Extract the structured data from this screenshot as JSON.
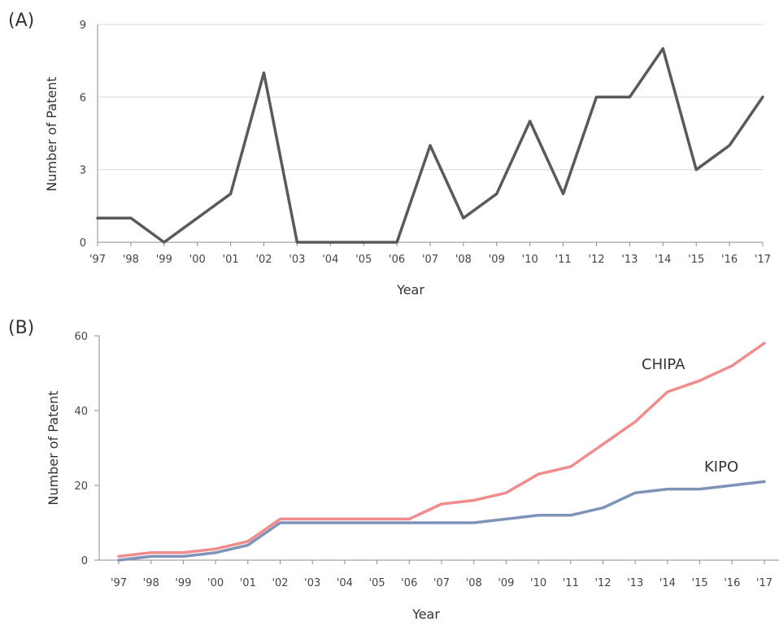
{
  "chart_data": [
    {
      "type": "line",
      "panel_label": "(A)",
      "xlabel": "Year",
      "ylabel": "Number of Patent",
      "categories": [
        "'97",
        "'98",
        "'99",
        "'00",
        "'01",
        "'02",
        "'03",
        "'04",
        "'05",
        "'06",
        "'07",
        "'08",
        "'09",
        "'10",
        "'11",
        "'12",
        "'13",
        "'14",
        "'15",
        "'16",
        "'17"
      ],
      "ylim": [
        0,
        9
      ],
      "yticks": [
        "0",
        "3",
        "6",
        "9"
      ],
      "grid": true,
      "series": [
        {
          "values": [
            1,
            1,
            0,
            1,
            2,
            7,
            0,
            0,
            0,
            0,
            4,
            1,
            2,
            5,
            2,
            6,
            6,
            8,
            3,
            4,
            6
          ],
          "color": "#5a5a5a"
        }
      ]
    },
    {
      "type": "line",
      "panel_label": "(B)",
      "xlabel": "Year",
      "ylabel": "Number of Patent",
      "categories": [
        "'97",
        "'98",
        "'99",
        "'00",
        "'01",
        "'02",
        "'03",
        "'04",
        "'05",
        "'06",
        "'07",
        "'08",
        "'09",
        "'10",
        "'11",
        "'12",
        "'13",
        "'14",
        "'15",
        "'16",
        "'17"
      ],
      "ylim": [
        0,
        60
      ],
      "yticks": [
        "0",
        "20",
        "40",
        "60"
      ],
      "grid": false,
      "series": [
        {
          "name": "CHIPA",
          "values": [
            1,
            2,
            2,
            3,
            5,
            11,
            11,
            11,
            11,
            11,
            15,
            16,
            18,
            23,
            25,
            31,
            37,
            45,
            48,
            52,
            58
          ],
          "color": "#f08c8c"
        },
        {
          "name": "KIPO",
          "values": [
            0,
            1,
            1,
            2,
            4,
            10,
            10,
            10,
            10,
            10,
            10,
            10,
            11,
            12,
            12,
            14,
            18,
            19,
            19,
            20,
            21
          ],
          "color": "#7f93b8"
        }
      ]
    }
  ]
}
